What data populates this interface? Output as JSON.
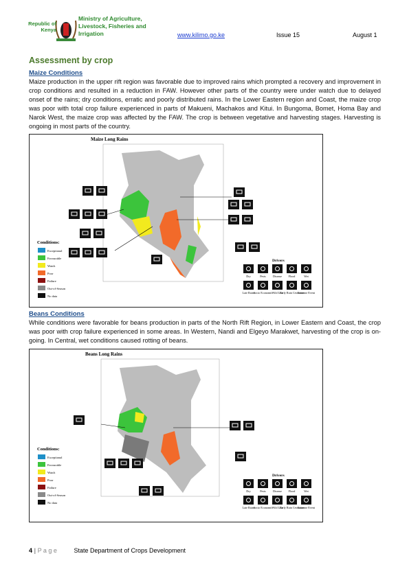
{
  "header": {
    "republic": "Republic of Kenya",
    "ministry": "Ministry of Agriculture, Livestock, Fisheries and Irrigation",
    "website": "www.kilimo.go.ke",
    "issue": "Issue 15",
    "date": "August 1"
  },
  "section_title": "Assessment by crop",
  "maize": {
    "heading": "Maize Conditions",
    "paragraph": "Maize production in the upper rift region was favorable due to improved rains which prompted a recovery and improvement in crop conditions and resulted in a reduction in FAW. However other parts of the country were under watch due to delayed onset of the rains; dry conditions, erratic and poorly distributed rains. In the Lower Eastern region and Coast, the maize crop was poor with total crop failure experienced in parts of Makueni, Machakos and Kitui. In Bungoma, Bomet, Homa Bay and Narok West, the maize crop was affected by the FAW. The crop is between vegetative and harvesting stages. Harvesting is ongoing in most parts of the country.",
    "map": {
      "title": "Maize Long Rains",
      "conditions_label": "Conditions:",
      "legend": [
        {
          "label": "Exceptional",
          "color": "#1e8fc8"
        },
        {
          "label": "Favourable",
          "color": "#3cc43c"
        },
        {
          "label": "Watch",
          "color": "#f2ea1e"
        },
        {
          "label": "Poor",
          "color": "#f26a2a"
        },
        {
          "label": "Failure",
          "color": "#8c1010"
        },
        {
          "label": "Out-of-Season",
          "color": "#8a8a8a"
        },
        {
          "label": "No data",
          "color": "#111111"
        }
      ],
      "drivers_title": "Drivers",
      "drivers": [
        "Dry",
        "Pests",
        "Disease",
        "Flood",
        "Wet",
        "Late Rains",
        "Socio Economic",
        "Wild Life",
        "Early Rain Cessation",
        "Extreme Event"
      ]
    }
  },
  "beans": {
    "heading": "Beans Conditions",
    "paragraph": "While conditions were favorable for beans production in parts of the North Rift Region, in Lower Eastern and Coast, the crop was poor with crop failure experienced in some areas. In Western, Nandi and Elgeyo Marakwet, harvesting of the crop is on-going. In Central, wet conditions caused rotting of beans.",
    "map": {
      "title": "Beans Long Rains",
      "conditions_label": "Conditions:",
      "legend": [
        {
          "label": "Exceptional",
          "color": "#1e8fc8"
        },
        {
          "label": "Favourable",
          "color": "#3cc43c"
        },
        {
          "label": "Watch",
          "color": "#f2ea1e"
        },
        {
          "label": "Poor",
          "color": "#f26a2a"
        },
        {
          "label": "Failure",
          "color": "#8c1010"
        },
        {
          "label": "Out-of-Season",
          "color": "#8a8a8a"
        },
        {
          "label": "No data",
          "color": "#111111"
        }
      ],
      "drivers_title": "Drivers",
      "drivers": [
        "Dry",
        "Pests",
        "Disease",
        "Flood",
        "Wet",
        "Late Rains",
        "Socio Economic",
        "Wild Life",
        "Early Rain Cessation",
        "Extreme Event"
      ]
    }
  },
  "footer": {
    "page_number": "4",
    "page_label": "P a g e",
    "department": "State Department of Crops Development"
  }
}
